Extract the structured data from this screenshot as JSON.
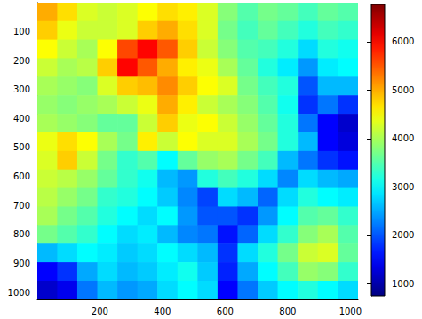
{
  "chart_data": {
    "type": "heatmap",
    "x": [
      32,
      96,
      160,
      224,
      288,
      352,
      416,
      480,
      544,
      608,
      672,
      736,
      800,
      864,
      928,
      992
    ],
    "y": [
      32,
      96,
      160,
      224,
      288,
      352,
      416,
      480,
      544,
      608,
      672,
      736,
      800,
      864,
      928,
      992
    ],
    "values": [
      [
        5000,
        4700,
        4300,
        4200,
        4300,
        4500,
        4700,
        4600,
        4300,
        3800,
        3500,
        3700,
        3600,
        3400,
        3600,
        3500
      ],
      [
        4800,
        4400,
        4200,
        4200,
        4300,
        4800,
        5000,
        4700,
        4300,
        3700,
        3400,
        3600,
        3400,
        3200,
        3400,
        3300
      ],
      [
        4500,
        4200,
        4000,
        4500,
        5600,
        6000,
        5500,
        4800,
        4200,
        3800,
        3500,
        3400,
        3200,
        2800,
        3200,
        3100
      ],
      [
        4200,
        4000,
        4100,
        4800,
        6000,
        5500,
        5000,
        4600,
        4400,
        4000,
        3600,
        3200,
        2900,
        2400,
        2900,
        3000
      ],
      [
        4000,
        3900,
        3800,
        4300,
        4800,
        4900,
        5200,
        4800,
        4500,
        4300,
        3700,
        3400,
        3200,
        2000,
        2600,
        2600
      ],
      [
        3900,
        3800,
        3900,
        4000,
        4200,
        4400,
        5000,
        4600,
        4200,
        4000,
        3800,
        3500,
        3100,
        1800,
        2200,
        1800
      ],
      [
        4000,
        3900,
        3800,
        3600,
        3600,
        4200,
        4800,
        4400,
        4500,
        4200,
        3900,
        3600,
        3200,
        2200,
        1500,
        1200
      ],
      [
        4400,
        4700,
        4500,
        4000,
        3700,
        4600,
        4200,
        4500,
        4300,
        4300,
        4000,
        3700,
        3200,
        2600,
        1500,
        1300
      ],
      [
        4300,
        4800,
        4200,
        3700,
        3300,
        3500,
        3000,
        3600,
        3900,
        4000,
        3700,
        3400,
        2600,
        2200,
        1800,
        1600
      ],
      [
        4200,
        4100,
        3900,
        3600,
        3300,
        3100,
        2600,
        2400,
        3200,
        3400,
        3200,
        2800,
        2300,
        2800,
        2600,
        2500
      ],
      [
        4100,
        3900,
        3700,
        3300,
        3200,
        3000,
        2700,
        2300,
        1900,
        2800,
        2600,
        2100,
        2800,
        3200,
        3000,
        2900
      ],
      [
        4000,
        3700,
        3500,
        3200,
        3000,
        2800,
        3000,
        2400,
        2000,
        2000,
        1800,
        2400,
        3000,
        3500,
        3600,
        3300
      ],
      [
        3700,
        3500,
        3300,
        3000,
        2800,
        2900,
        2600,
        2300,
        2200,
        1600,
        2100,
        2800,
        3300,
        3800,
        4000,
        3500
      ],
      [
        2600,
        2800,
        3000,
        2900,
        2700,
        2800,
        3000,
        2800,
        2600,
        1800,
        2800,
        3200,
        3700,
        4200,
        4300,
        3600
      ],
      [
        1500,
        1800,
        2500,
        2800,
        2600,
        2700,
        2900,
        3100,
        2700,
        1700,
        2500,
        3000,
        3400,
        3900,
        3800,
        3300
      ],
      [
        1200,
        1400,
        2200,
        2600,
        2400,
        2500,
        2800,
        3000,
        2800,
        1500,
        2200,
        2700,
        3000,
        3200,
        3000,
        2800
      ]
    ],
    "xlim": [
      0.5,
      1024.5
    ],
    "ylim": [
      0.5,
      1024.5
    ],
    "xticks": [
      200,
      400,
      600,
      800,
      1000
    ],
    "yticks": [
      100,
      200,
      300,
      400,
      500,
      600,
      700,
      800,
      900,
      1000
    ],
    "colorbar": {
      "range": [
        750,
        6770
      ],
      "ticks": [
        1000,
        2000,
        3000,
        4000,
        5000,
        6000
      ]
    }
  }
}
